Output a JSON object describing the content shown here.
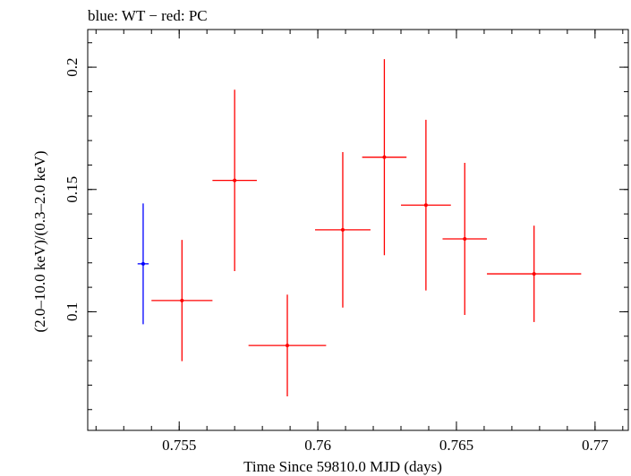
{
  "title": "blue: WT − red: PC",
  "chart_data": {
    "type": "scatter",
    "title": "blue: WT − red: PC",
    "xlabel": "Time Since 59810.0 MJD (days)",
    "ylabel": "(2.0–10.0 keV)/(0.3–2.0 keV)",
    "xlim": [
      0.7517,
      0.7712
    ],
    "ylim": [
      0.0515,
      0.2154
    ],
    "xticks": [
      {
        "value": 0.755,
        "label": "0.755"
      },
      {
        "value": 0.76,
        "label": "0.76"
      },
      {
        "value": 0.765,
        "label": "0.765"
      },
      {
        "value": 0.77,
        "label": "0.77"
      }
    ],
    "yticks": [
      {
        "value": 0.1,
        "label": "0.1"
      },
      {
        "value": 0.15,
        "label": "0.15"
      },
      {
        "value": 0.2,
        "label": "0.2"
      }
    ],
    "x_minor_step": 0.001,
    "y_minor_step": 0.01,
    "grid": false,
    "series": [
      {
        "name": "WT",
        "color": "#0000ff",
        "points": [
          {
            "x": 0.7537,
            "xerr": 0.0002,
            "y": 0.1196,
            "yerr": 0.0247
          }
        ]
      },
      {
        "name": "PC",
        "color": "#ff0000",
        "points": [
          {
            "x": 0.7551,
            "xerr": 0.0011,
            "y": 0.1046,
            "yerr": 0.0248
          },
          {
            "x": 0.757,
            "xerr": 0.0008,
            "y": 0.1537,
            "yerr": 0.0371
          },
          {
            "x": 0.7589,
            "xerr": 0.0014,
            "y": 0.0862,
            "yerr": 0.0208
          },
          {
            "x": 0.7609,
            "xerr": 0.001,
            "y": 0.1335,
            "yerr": 0.0318
          },
          {
            "x": 0.7624,
            "xerr": 0.0008,
            "y": 0.1632,
            "yerr": 0.0401
          },
          {
            "x": 0.7639,
            "xerr": 0.0009,
            "y": 0.1436,
            "yerr": 0.0349
          },
          {
            "x": 0.7653,
            "xerr": 0.0008,
            "y": 0.1298,
            "yerr": 0.0311
          },
          {
            "x": 0.7678,
            "xerr": 0.0017,
            "y": 0.1155,
            "yerr": 0.0197
          }
        ]
      }
    ]
  }
}
